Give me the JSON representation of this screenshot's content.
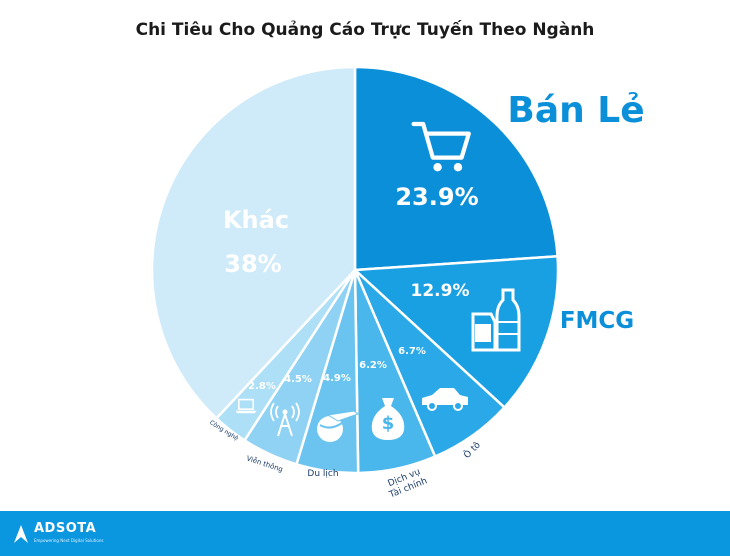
{
  "chart_data": {
    "type": "pie",
    "title": "Chi Tiêu Cho Quảng Cáo Trực Tuyến Theo Ngành",
    "slices": [
      {
        "label": "Bán Lẻ",
        "value_label": "23.9%",
        "value": 23.9,
        "color": "#0b8fd9",
        "icon": "shopping-cart-icon"
      },
      {
        "label": "FMCG",
        "value_label": "12.9%",
        "value": 12.9,
        "color": "#19a0e3",
        "icon": "bottle-carton-icon"
      },
      {
        "label": "Ô tô",
        "value_label": "6.7%",
        "value": 6.7,
        "color": "#2aa8e8",
        "icon": "car-icon"
      },
      {
        "label": "Dịch vụ Tài chính",
        "value_label": "6.2%",
        "value": 6.2,
        "color": "#49b6ec",
        "icon": "money-bag-icon"
      },
      {
        "label": "Du lịch",
        "value_label": "4.9%",
        "value": 4.9,
        "color": "#6bc4ef",
        "icon": "plane-globe-icon"
      },
      {
        "label": "Viễn thông",
        "value_label": "4.5%",
        "value": 4.5,
        "color": "#90d2f3",
        "icon": "antenna-icon"
      },
      {
        "label": "Công nghệ",
        "value_label": "2.8%",
        "value": 2.8,
        "color": "#addff6",
        "icon": "laptop-icon"
      },
      {
        "label": "Khác",
        "value_label": "38%",
        "value": 38,
        "color": "#cfeaf8",
        "icon": ""
      }
    ]
  },
  "footer": {
    "brand": "ADSOTA",
    "tagline": "Empowering Next Digital Solutions",
    "color": "#0b96e0"
  }
}
